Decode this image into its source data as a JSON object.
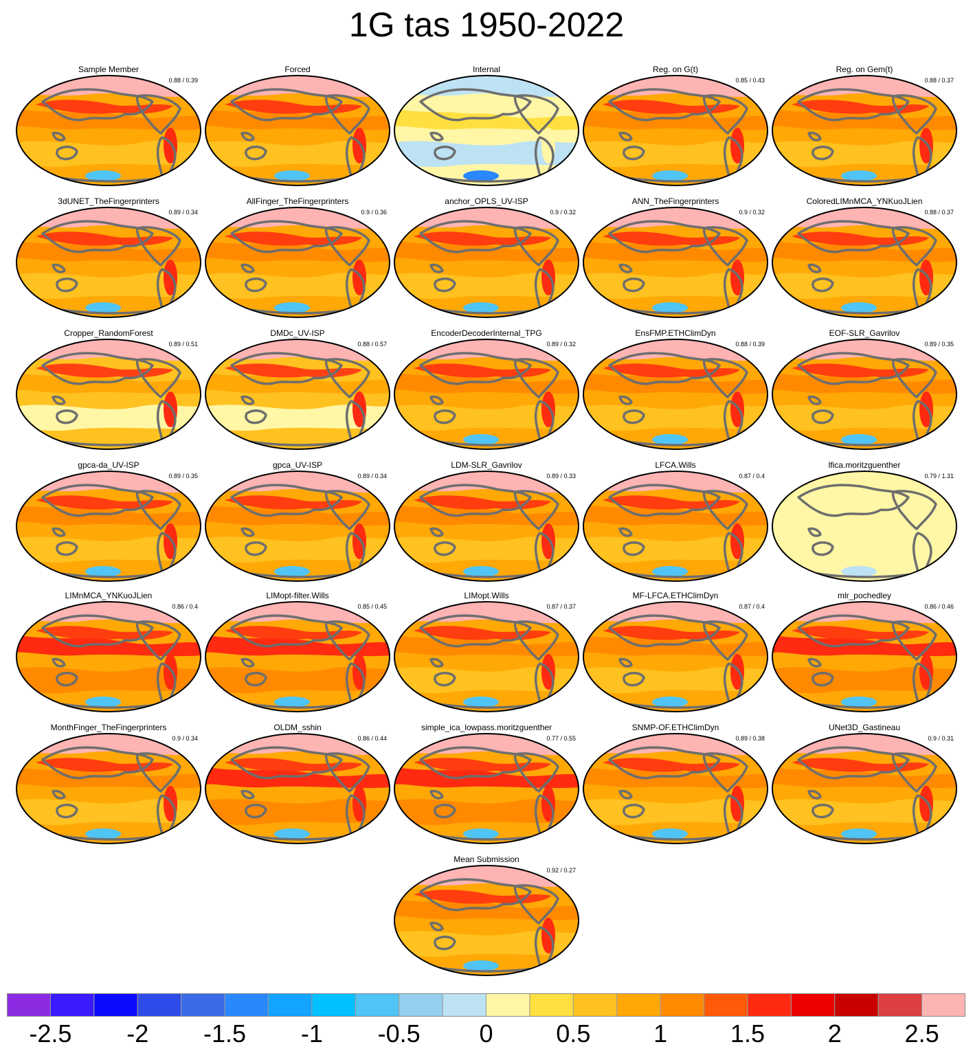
{
  "title": "1G tas 1950-2022",
  "panels": [
    {
      "name": "Sample Member",
      "score": "0.88 / 0.39",
      "style": "warm"
    },
    {
      "name": "Forced",
      "score": "",
      "style": "warm"
    },
    {
      "name": "Internal",
      "score": "",
      "style": "internal"
    },
    {
      "name": "Reg. on G(t)",
      "score": "0.85 / 0.43",
      "style": "warm"
    },
    {
      "name": "Reg. on Gem(t)",
      "score": "0.88 / 0.37",
      "style": "warm"
    },
    {
      "name": "3dUNET_TheFingerprinters",
      "score": "0.89 / 0.34",
      "style": "warm"
    },
    {
      "name": "AllFinger_TheFingerprinters",
      "score": "0.9 / 0.36",
      "style": "warm"
    },
    {
      "name": "anchor_OPLS_UV-ISP",
      "score": "0.9 / 0.32",
      "style": "warm"
    },
    {
      "name": "ANN_TheFingerprinters",
      "score": "0.9 / 0.32",
      "style": "warm"
    },
    {
      "name": "ColoredLIMnMCA_YNKuoJLien",
      "score": "0.88 / 0.37",
      "style": "warm"
    },
    {
      "name": "Cropper_RandomForest",
      "score": "0.89 / 0.51",
      "style": "mild"
    },
    {
      "name": "DMDc_UV-ISP",
      "score": "0.88 / 0.57",
      "style": "mild"
    },
    {
      "name": "EncoderDecoderInternal_TPG",
      "score": "0.89 / 0.32",
      "style": "warm"
    },
    {
      "name": "EnsFMP.ETHClimDyn",
      "score": "0.88 / 0.39",
      "style": "warm"
    },
    {
      "name": "EOF-SLR_Gavrilov",
      "score": "0.89 / 0.35",
      "style": "warm"
    },
    {
      "name": "gpca-da_UV-ISP",
      "score": "0.89 / 0.35",
      "style": "warm"
    },
    {
      "name": "gpca_UV-ISP",
      "score": "0.89 / 0.34",
      "style": "warm"
    },
    {
      "name": "LDM-SLR_Gavrilov",
      "score": "0.89 / 0.33",
      "style": "warm"
    },
    {
      "name": "LFCA.Wills",
      "score": "0.87 / 0.4",
      "style": "warm"
    },
    {
      "name": "lfica.moritzguenther",
      "score": "0.79 / 1.31",
      "style": "pale"
    },
    {
      "name": "LIMnMCA_YNKuoJLien",
      "score": "0.86 / 0.4",
      "style": "hot"
    },
    {
      "name": "LIMopt-filter.Wills",
      "score": "0.85 / 0.45",
      "style": "hot"
    },
    {
      "name": "LIMopt.Wills",
      "score": "0.87 / 0.37",
      "style": "warm"
    },
    {
      "name": "MF-LFCA.ETHClimDyn",
      "score": "0.87 / 0.4",
      "style": "warm"
    },
    {
      "name": "mlr_pochedley",
      "score": "0.86 / 0.46",
      "style": "hot"
    },
    {
      "name": "MonthFinger_TheFingerprinters",
      "score": "0.9 / 0.34",
      "style": "warm"
    },
    {
      "name": "OLDM_sshin",
      "score": "0.86 / 0.44",
      "style": "hot"
    },
    {
      "name": "simple_ica_lowpass.moritzguenther",
      "score": "0.77 / 0.55",
      "style": "hot"
    },
    {
      "name": "SNMP-OF.ETHClimDyn",
      "score": "0.89 / 0.38",
      "style": "warm"
    },
    {
      "name": "UNet3D_Gastineau",
      "score": "0.9 / 0.31",
      "style": "warm"
    },
    {
      "name": "Mean Submission",
      "score": "0.92 / 0.27",
      "style": "warm"
    }
  ],
  "colorbar": {
    "colors": [
      "#8a2be2",
      "#3a1aff",
      "#0a0aff",
      "#2e4ae8",
      "#3a6be8",
      "#2a88ff",
      "#12a4ff",
      "#00c0ff",
      "#50c4f4",
      "#94d0ee",
      "#bde2f4",
      "#fff6a6",
      "#ffe040",
      "#ffc220",
      "#ffa806",
      "#ff8a00",
      "#ff5a08",
      "#ff2a10",
      "#ec0000",
      "#c80000",
      "#dc4040",
      "#ffb4b4"
    ],
    "labels": [
      "-2.5",
      "-2",
      "-1.5",
      "-1",
      "-0.5",
      "0",
      "0.5",
      "1",
      "1.5",
      "2",
      "2.5"
    ]
  },
  "map_colors": {
    "land_outline": "#6e6e6e",
    "ocean_warm": "#ffa806",
    "ocean_mild": "#ffc220",
    "pale": "#fff6a6",
    "arctic": "#ffb4b4",
    "hot": "#ff2a10",
    "cold": "#50c4f4"
  }
}
